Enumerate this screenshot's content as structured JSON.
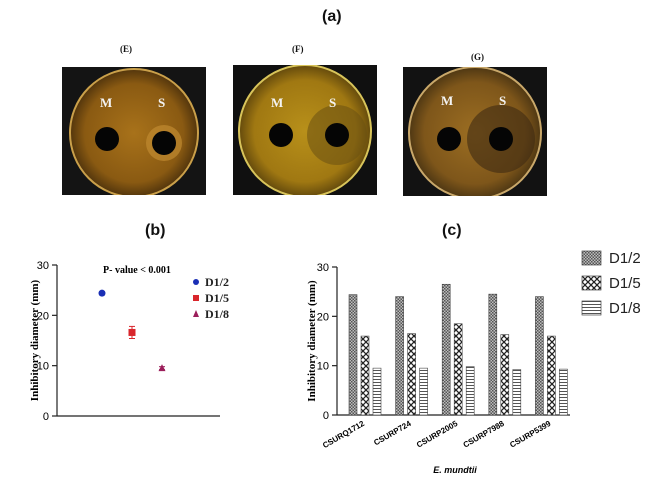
{
  "panel_a": {
    "letter": "(a)",
    "photos": [
      {
        "label": "(E)",
        "left_well": "M",
        "right_well": "S"
      },
      {
        "label": "(F)",
        "left_well": "M",
        "right_well": "S"
      },
      {
        "label": "(G)",
        "left_well": "M",
        "right_well": "S"
      }
    ]
  },
  "panel_b": {
    "letter": "(b)"
  },
  "panel_c": {
    "letter": "(c)"
  },
  "chart_data": [
    {
      "type": "scatter",
      "panel": "(b)",
      "ylabel": "Inhibitory diameter (mm)",
      "annotation": "P- value < 0.001",
      "ylim": [
        0,
        30
      ],
      "yticks": [
        0,
        10,
        20,
        30
      ],
      "grid": false,
      "legend_position": "right",
      "series": [
        {
          "name": "D1/2",
          "x": 1,
          "y": 24.4,
          "error": 0.3,
          "marker": "circle",
          "color": "#1a2fb5"
        },
        {
          "name": "D1/5",
          "x": 2,
          "y": 16.6,
          "error": 1.2,
          "marker": "square",
          "color": "#d9262c"
        },
        {
          "name": "D1/8",
          "x": 3,
          "y": 9.5,
          "error": 0.3,
          "marker": "triangle",
          "color": "#9b1e5a"
        }
      ]
    },
    {
      "type": "bar",
      "panel": "(c)",
      "ylabel": "Inhibitory diameter (mm)",
      "xlabel": "E. mundtii",
      "categories": [
        "CSURQ1712",
        "CSURP724",
        "CSURP2005",
        "CSURP7988",
        "CSURP5399"
      ],
      "ylim": [
        0,
        30
      ],
      "yticks": [
        0,
        10,
        20,
        30
      ],
      "grid": false,
      "legend_position": "top-right",
      "series": [
        {
          "name": "D1/2",
          "values": [
            24.4,
            24.0,
            26.5,
            24.5,
            24.0
          ]
        },
        {
          "name": "D1/5",
          "values": [
            16.0,
            16.5,
            18.5,
            16.3,
            16.0
          ]
        },
        {
          "name": "D1/8",
          "values": [
            9.5,
            9.5,
            9.8,
            9.2,
            9.3
          ]
        }
      ]
    }
  ]
}
